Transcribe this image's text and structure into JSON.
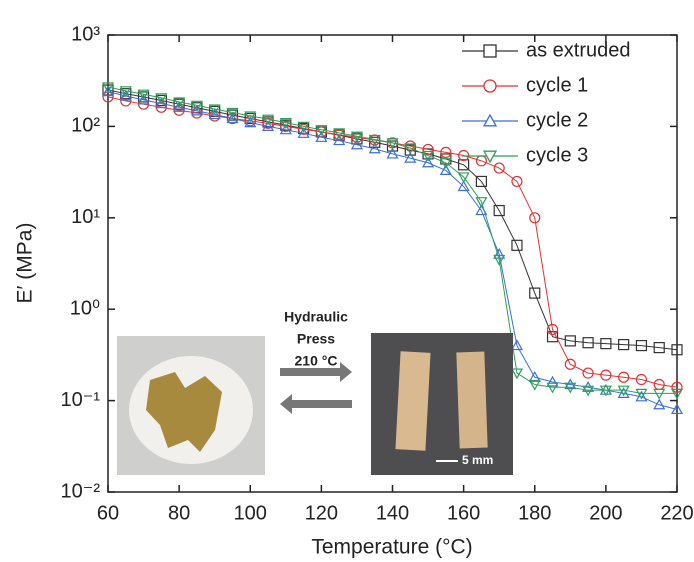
{
  "chart_data": {
    "type": "scatter",
    "x_label": "Temperature (°C)",
    "y_label": "E′ (MPa)",
    "log_y": true,
    "x": [
      60,
      65,
      70,
      75,
      80,
      85,
      90,
      95,
      100,
      105,
      110,
      115,
      120,
      125,
      130,
      135,
      140,
      145,
      150,
      155,
      160,
      165,
      170,
      175,
      180,
      185,
      190,
      195,
      200,
      205,
      210,
      215,
      220
    ],
    "series": [
      {
        "name": "as extruded",
        "color": "#333333",
        "marker": "square",
        "values": [
          250,
          228,
          210,
          192,
          175,
          160,
          146,
          133,
          122,
          112,
          103,
          95,
          87,
          80,
          73,
          67,
          61,
          55,
          50,
          44,
          38,
          25,
          12,
          5,
          1.5,
          0.5,
          0.45,
          0.43,
          0.42,
          0.41,
          0.4,
          0.38,
          0.36
        ]
      },
      {
        "name": "cycle 1",
        "color": "#e03333",
        "marker": "circle",
        "values": [
          210,
          190,
          175,
          162,
          150,
          140,
          130,
          122,
          115,
          108,
          100,
          93,
          87,
          81,
          76,
          71,
          66,
          61,
          56,
          52,
          48,
          42,
          35,
          25,
          10,
          0.6,
          0.25,
          0.2,
          0.19,
          0.18,
          0.17,
          0.15,
          0.14
        ]
      },
      {
        "name": "cycle 2",
        "color": "#3a6fd8",
        "marker": "triangle-up",
        "values": [
          240,
          215,
          195,
          178,
          162,
          148,
          135,
          122,
          110,
          100,
          92,
          84,
          76,
          70,
          63,
          57,
          50,
          45,
          40,
          33,
          22,
          12,
          4,
          0.4,
          0.18,
          0.16,
          0.15,
          0.14,
          0.13,
          0.12,
          0.11,
          0.09,
          0.08
        ]
      },
      {
        "name": "cycle 3",
        "color": "#2ca05a",
        "marker": "triangle-down",
        "values": [
          270,
          245,
          225,
          205,
          185,
          170,
          155,
          142,
          130,
          120,
          110,
          100,
          92,
          85,
          78,
          72,
          66,
          58,
          48,
          40,
          28,
          15,
          3.5,
          0.2,
          0.15,
          0.14,
          0.14,
          0.13,
          0.13,
          0.13,
          0.12,
          0.12,
          0.12
        ]
      }
    ],
    "xlim": [
      60,
      220
    ],
    "xticks": [
      60,
      80,
      100,
      120,
      140,
      160,
      180,
      200,
      220
    ],
    "ylim": [
      0.01,
      1000
    ],
    "yticks": [
      {
        "value": 0.01,
        "label": "10⁻²"
      },
      {
        "value": 0.1,
        "label": "10⁻¹"
      },
      {
        "value": 1,
        "label": "10⁰"
      },
      {
        "value": 10,
        "label": "10¹"
      },
      {
        "value": 100,
        "label": "10²"
      },
      {
        "value": 1000,
        "label": "10³"
      }
    ],
    "legend": "upper right",
    "annotations": [
      "Hydraulic",
      "Press",
      "210 °C",
      "5 mm"
    ]
  }
}
